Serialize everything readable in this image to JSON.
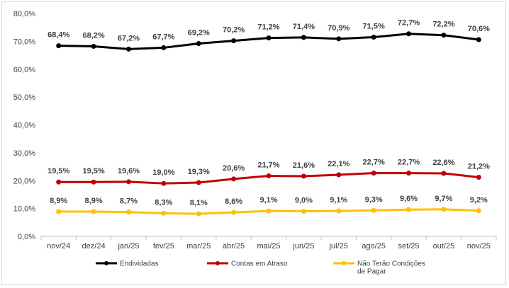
{
  "chart_data": {
    "type": "line",
    "title": "",
    "xlabel": "",
    "ylabel": "",
    "categories": [
      "nov/24",
      "dez/24",
      "jan/25",
      "fev/25",
      "mar/25",
      "abr/25",
      "mai/25",
      "jun/25",
      "jul/25",
      "ago/25",
      "set/25",
      "out/25",
      "nov/25"
    ],
    "ylim": [
      0,
      80
    ],
    "yticks": [
      "0,0%",
      "10,0%",
      "20,0%",
      "30,0%",
      "40,0%",
      "50,0%",
      "60,0%",
      "70,0%",
      "80,0%"
    ],
    "grid": false,
    "legend_position": "bottom",
    "series": [
      {
        "name": "Endividadas",
        "color": "#000000",
        "values": [
          68.4,
          68.2,
          67.2,
          67.7,
          69.2,
          70.2,
          71.2,
          71.4,
          70.9,
          71.5,
          72.7,
          72.2,
          70.6
        ],
        "labels": [
          "68,4%",
          "68,2%",
          "67,2%",
          "67,7%",
          "69,2%",
          "70,2%",
          "71,2%",
          "71,4%",
          "70,9%",
          "71,5%",
          "72,7%",
          "72,2%",
          "70,6%"
        ]
      },
      {
        "name": "Contas em Atraso",
        "color": "#c00000",
        "values": [
          19.5,
          19.5,
          19.6,
          19.0,
          19.3,
          20.6,
          21.7,
          21.6,
          22.1,
          22.7,
          22.7,
          22.6,
          21.2
        ],
        "labels": [
          "19,5%",
          "19,5%",
          "19,6%",
          "19,0%",
          "19,3%",
          "20,6%",
          "21,7%",
          "21,6%",
          "22,1%",
          "22,7%",
          "22,7%",
          "22,6%",
          "21,2%"
        ]
      },
      {
        "name": "Não Terão Condições de Pagar",
        "name_lines": [
          "Não Terão Condições",
          "de Pagar"
        ],
        "color": "#ffc000",
        "values": [
          8.9,
          8.9,
          8.7,
          8.3,
          8.1,
          8.6,
          9.1,
          9.0,
          9.1,
          9.3,
          9.6,
          9.7,
          9.2
        ],
        "labels": [
          "8,9%",
          "8,9%",
          "8,7%",
          "8,3%",
          "8,1%",
          "8,6%",
          "9,1%",
          "9,0%",
          "9,1%",
          "9,3%",
          "9,6%",
          "9,7%",
          "9,2%"
        ]
      }
    ]
  }
}
